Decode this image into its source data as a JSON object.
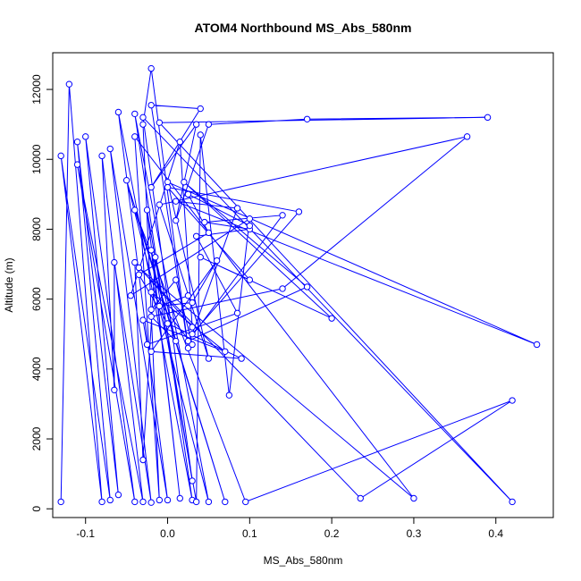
{
  "chart_data": {
    "type": "line",
    "title": "ATOM4 Northbound MS_Abs_580nm",
    "xlabel": "MS_Abs_580nm",
    "ylabel": "Altitude (m)",
    "xlim": [
      -0.14,
      0.47
    ],
    "ylim": [
      -250,
      13050
    ],
    "xticks": [
      -0.1,
      0.0,
      0.1,
      0.2,
      0.3,
      0.4
    ],
    "xtick_labels": [
      "-0.1",
      "0.0",
      "0.1",
      "0.2",
      "0.3",
      "0.4"
    ],
    "yticks": [
      0,
      2000,
      4000,
      6000,
      8000,
      10000,
      12000
    ],
    "ytick_labels": [
      "0",
      "2000",
      "4000",
      "6000",
      "8000",
      "10000",
      "12000"
    ],
    "grid": false,
    "series_color": "#0000ff",
    "marker": "open-circle",
    "points": [
      [
        -0.13,
        200
      ],
      [
        -0.12,
        12150
      ],
      [
        -0.08,
        200
      ],
      [
        -0.13,
        10100
      ],
      [
        -0.07,
        250
      ],
      [
        -0.11,
        10500
      ],
      [
        -0.06,
        400
      ],
      [
        -0.1,
        10650
      ],
      [
        -0.04,
        200
      ],
      [
        -0.11,
        9850
      ],
      [
        -0.03,
        200
      ],
      [
        -0.08,
        10100
      ],
      [
        -0.065,
        3400
      ],
      [
        -0.065,
        7050
      ],
      [
        -0.02,
        180
      ],
      [
        -0.07,
        10300
      ],
      [
        0.0,
        250
      ],
      [
        -0.06,
        11350
      ],
      [
        0.03,
        250
      ],
      [
        -0.04,
        11300
      ],
      [
        0.05,
        200
      ],
      [
        -0.05,
        9400
      ],
      [
        0.07,
        200
      ],
      [
        -0.04,
        8550
      ],
      [
        0.095,
        200
      ],
      [
        0.42,
        3100
      ],
      [
        0.235,
        300
      ],
      [
        -0.035,
        6900
      ],
      [
        0.3,
        300
      ],
      [
        -0.04,
        10650
      ],
      [
        -0.01,
        250
      ],
      [
        -0.03,
        11000
      ],
      [
        -0.02,
        12600
      ],
      [
        0.025,
        4600
      ],
      [
        -0.02,
        11550
      ],
      [
        0.04,
        11450
      ],
      [
        -0.02,
        9200
      ],
      [
        0.035,
        11000
      ],
      [
        0.01,
        8250
      ],
      [
        0.05,
        11000
      ],
      [
        0.17,
        11150
      ],
      [
        0.39,
        11200
      ],
      [
        -0.01,
        11050
      ],
      [
        0.42,
        200
      ],
      [
        -0.03,
        11200
      ],
      [
        0.03,
        800
      ],
      [
        -0.025,
        8550
      ],
      [
        0.015,
        300
      ],
      [
        -0.02,
        7400
      ],
      [
        0.035,
        200
      ],
      [
        0.04,
        10700
      ],
      [
        0.075,
        3250
      ],
      [
        0.1,
        8300
      ],
      [
        -0.045,
        6100
      ],
      [
        0.015,
        10500
      ],
      [
        0.03,
        5200
      ],
      [
        -0.04,
        7050
      ],
      [
        -0.03,
        1400
      ],
      [
        -0.015,
        7200
      ],
      [
        0.01,
        4800
      ],
      [
        -0.02,
        5500
      ],
      [
        0.14,
        6300
      ],
      [
        0.365,
        10650
      ],
      [
        -0.01,
        8700
      ],
      [
        0.05,
        4300
      ],
      [
        0.0,
        9350
      ],
      [
        0.45,
        4700
      ],
      [
        0.01,
        8800
      ],
      [
        0.085,
        8600
      ],
      [
        0.03,
        5000
      ],
      [
        0.16,
        8500
      ],
      [
        0.0,
        9200
      ],
      [
        0.1,
        6550
      ],
      [
        0.04,
        7200
      ],
      [
        0.2,
        5450
      ],
      [
        0.02,
        9350
      ],
      [
        0.17,
        6350
      ],
      [
        0.025,
        4800
      ],
      [
        0.14,
        8400
      ],
      [
        0.045,
        8200
      ],
      [
        0.1,
        8000
      ],
      [
        0.035,
        7800
      ],
      [
        0.085,
        5600
      ],
      [
        -0.025,
        4700
      ],
      [
        -0.03,
        5400
      ],
      [
        0.07,
        4500
      ],
      [
        -0.02,
        6200
      ],
      [
        0.03,
        4700
      ],
      [
        0.01,
        6550
      ],
      [
        -0.02,
        5700
      ],
      [
        0.025,
        6100
      ],
      [
        -0.01,
        5800
      ],
      [
        0.03,
        5900
      ],
      [
        0.06,
        7100
      ],
      [
        -0.02,
        4500
      ],
      [
        0.09,
        4300
      ],
      [
        0.0,
        5300
      ],
      [
        -0.035,
        6700
      ],
      [
        0.05,
        7900
      ],
      [
        0.025,
        9000
      ],
      [
        0.1,
        8100
      ]
    ]
  }
}
